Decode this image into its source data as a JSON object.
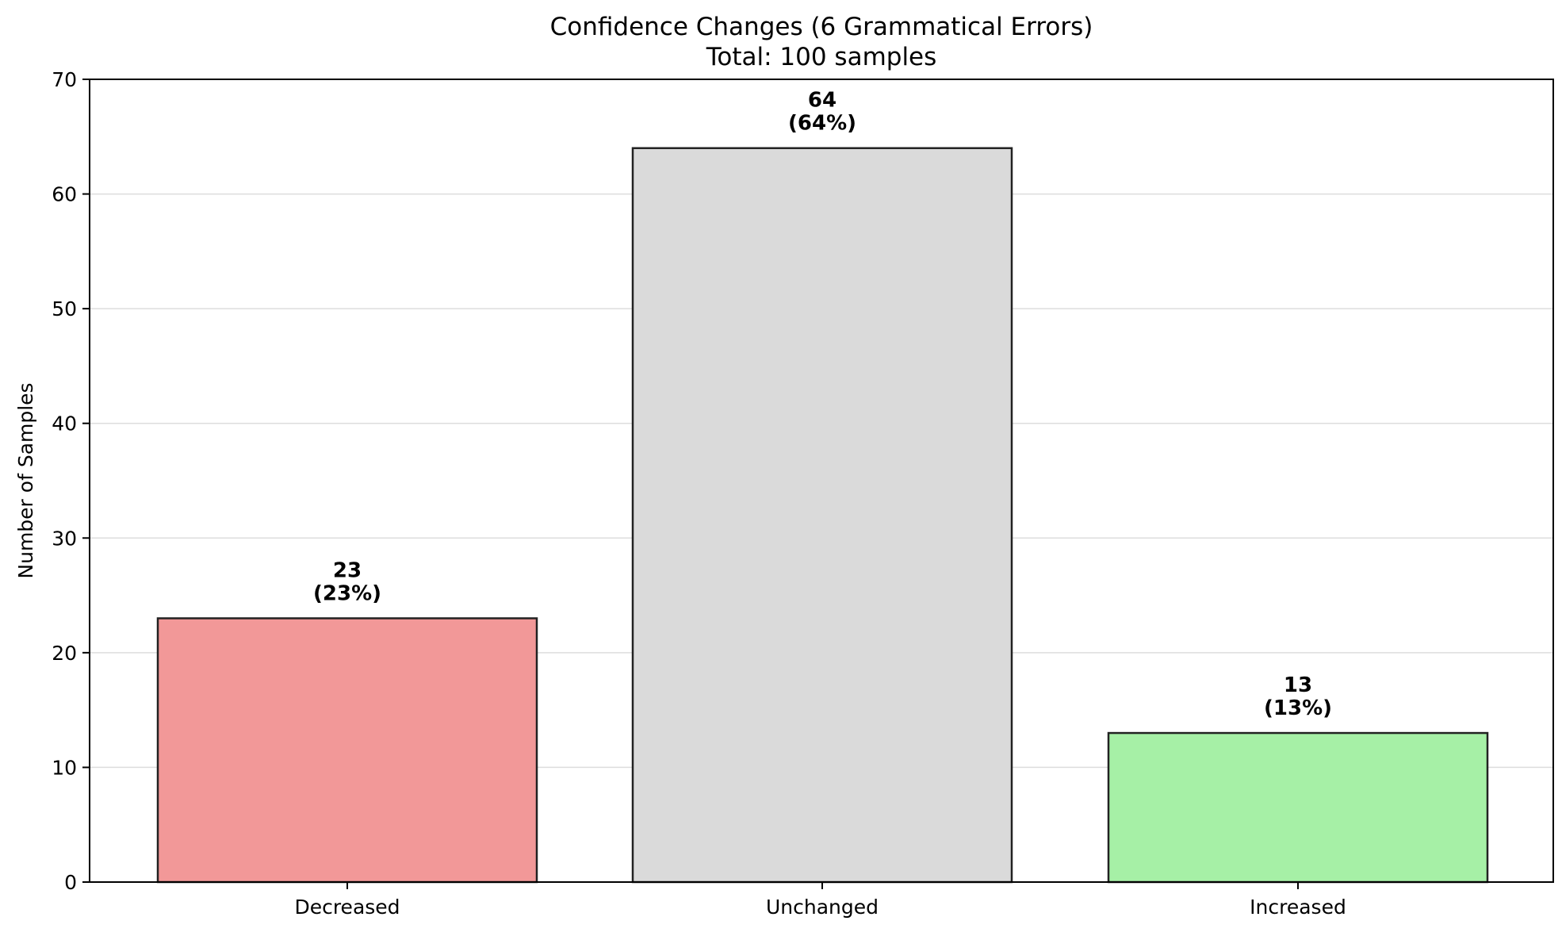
{
  "chart_data": {
    "type": "bar",
    "title": "Confidence Changes (6 Grammatical Errors)",
    "subtitle": "Total: 100 samples",
    "xlabel": "",
    "ylabel": "Number of Samples",
    "categories": [
      "Decreased",
      "Unchanged",
      "Increased"
    ],
    "values": [
      23,
      64,
      13
    ],
    "percentages": [
      23,
      64,
      13
    ],
    "data_labels": [
      "23\n(23%)",
      "64\n(64%)",
      "13\n(13%)"
    ],
    "colors": [
      "#f29898",
      "#dadada",
      "#a6f0a6"
    ],
    "edge_color": "#222222",
    "ylim": [
      0,
      70
    ],
    "yticks": [
      0,
      10,
      20,
      30,
      40,
      50,
      60,
      70
    ],
    "grid": "horizontal",
    "legend": "none"
  }
}
